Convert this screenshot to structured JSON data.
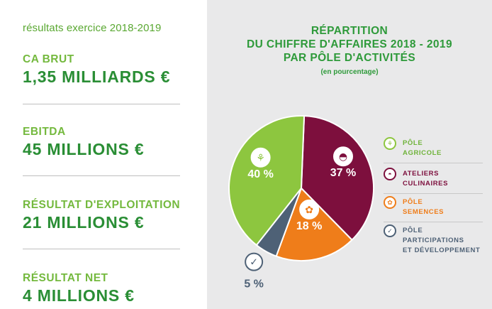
{
  "left_panel": {
    "subtitle": "résultats exercice 2018-2019",
    "kpis": [
      {
        "label": "CA BRUT",
        "value": "1,35 MILLIARDS €"
      },
      {
        "label": "EBITDA",
        "value": "45 MILLIONS €"
      },
      {
        "label": "RÉSULTAT D'EXPLOITATION",
        "value": "21 MILLIONS €"
      },
      {
        "label": "RÉSULTAT NET",
        "value": "4 MILLIONS €"
      }
    ]
  },
  "chart_data": {
    "type": "pie",
    "title_lines": [
      "RÉPARTITION",
      "DU CHIFFRE D'AFFAIRES 2018 - 2019",
      "PAR PÔLE D'ACTIVITÉS"
    ],
    "note": "(en pourcentage)",
    "slices": [
      {
        "name": "ATELIERS CULINAIRES",
        "value": 37,
        "label": "37 %",
        "color": "#7d0f3d",
        "icon": "cloche-icon"
      },
      {
        "name": "PÔLE SEMENCES",
        "value": 18,
        "label": "18 %",
        "color": "#ef7d1a",
        "icon": "seed-icon"
      },
      {
        "name": "PÔLE PARTICIPATIONS ET DÉVELOPPEMENT",
        "value": 5,
        "label": "5 %",
        "color": "#4e6176",
        "icon": "check-leaf-icon"
      },
      {
        "name": "PÔLE AGRICOLE",
        "value": 40,
        "label": "40 %",
        "color": "#8dc63f",
        "icon": "wheat-icon"
      }
    ],
    "legend": [
      {
        "lines": [
          "PÔLE",
          "AGRICOLE"
        ],
        "color": "#8dc63f",
        "text_color": "#6fb33a",
        "icon": "wheat-icon"
      },
      {
        "lines": [
          "ATELIERS",
          "CULINAIRES"
        ],
        "color": "#7d0f3d",
        "text_color": "#7d0f3d",
        "icon": "cloche-icon"
      },
      {
        "lines": [
          "PÔLE",
          "SEMENCES"
        ],
        "color": "#ef7d1a",
        "text_color": "#ef7d1a",
        "icon": "seed-icon"
      },
      {
        "lines": [
          "PÔLE",
          "PARTICIPATIONS",
          "ET DÉVELOPPEMENT"
        ],
        "color": "#4e6176",
        "text_color": "#4e6176",
        "icon": "check-leaf-icon"
      }
    ]
  }
}
